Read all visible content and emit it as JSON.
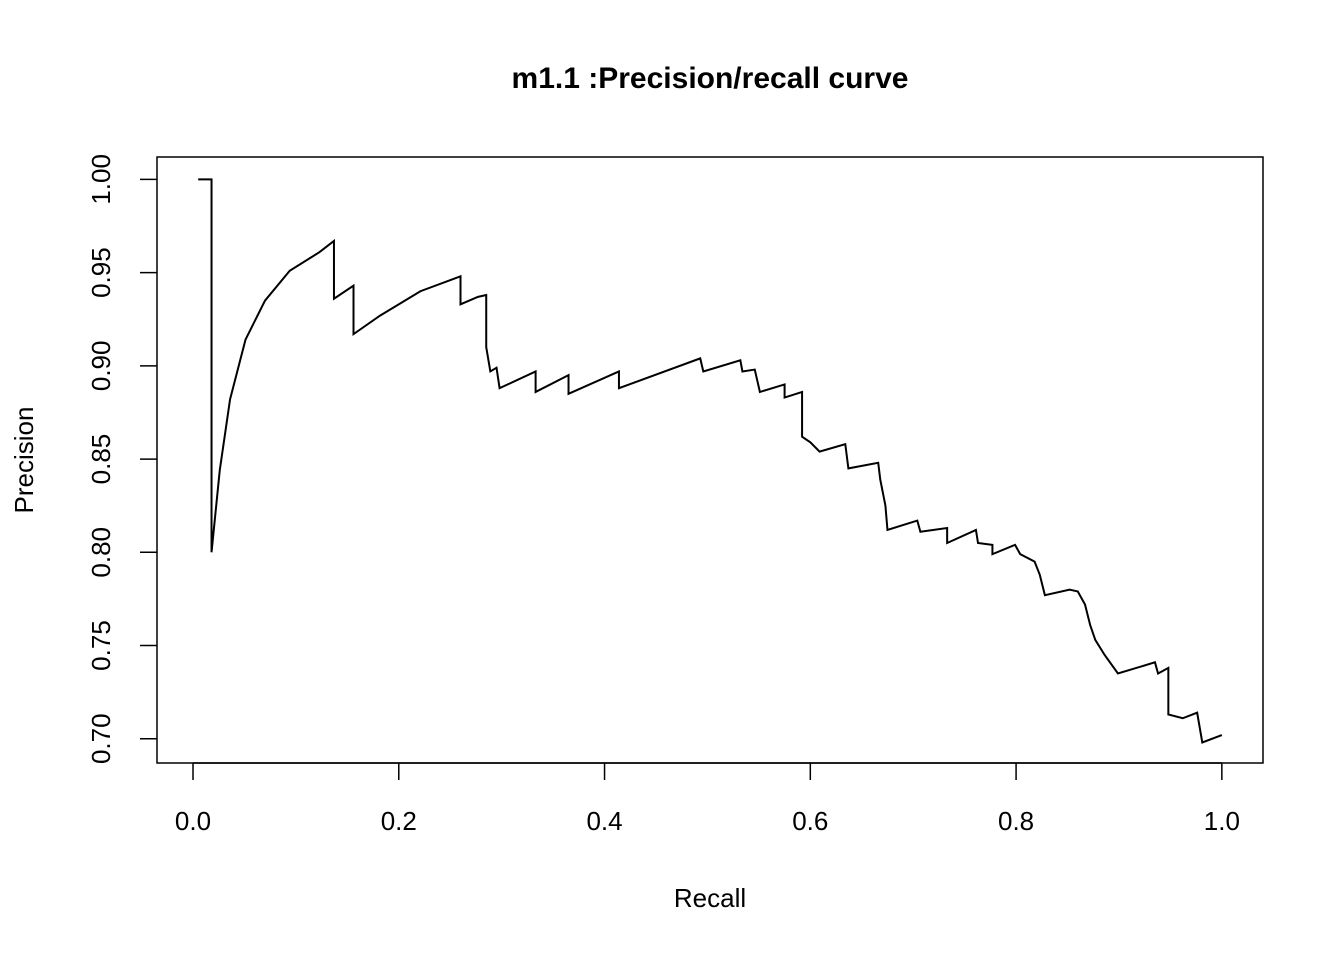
{
  "chart_data": {
    "type": "line",
    "title": "m1.1 :Precision/recall curve",
    "x_label": "Recall",
    "y_label": "Precision",
    "color": "#000000",
    "xlim": [
      -0.035,
      1.04
    ],
    "ylim": [
      0.687,
      1.012
    ],
    "xticks": [
      {
        "value": 0,
        "label": "0.0"
      },
      0.2,
      0.4,
      0.6,
      0.8,
      {
        "value": 1,
        "label": "1.0"
      }
    ],
    "yticks": [
      {
        "value": 0.7,
        "label": "0.70"
      },
      0.75,
      {
        "value": 0.8,
        "label": "0.80"
      },
      0.85,
      {
        "value": 0.9,
        "label": "0.90"
      },
      0.95,
      {
        "value": 1,
        "label": "1.00"
      }
    ],
    "x": [
      0.005,
      0.018,
      0.018,
      0.026,
      0.036,
      0.051,
      0.07,
      0.094,
      0.123,
      0.137,
      0.137,
      0.156,
      0.156,
      0.182,
      0.221,
      0.26,
      0.26,
      0.277,
      0.285,
      0.285,
      0.289,
      0.295,
      0.298,
      0.333,
      0.333,
      0.365,
      0.365,
      0.414,
      0.414,
      0.493,
      0.496,
      0.532,
      0.534,
      0.546,
      0.551,
      0.575,
      0.575,
      0.592,
      0.592,
      0.6,
      0.609,
      0.634,
      0.637,
      0.666,
      0.668,
      0.673,
      0.675,
      0.704,
      0.707,
      0.733,
      0.733,
      0.761,
      0.763,
      0.777,
      0.777,
      0.799,
      0.804,
      0.818,
      0.823,
      0.828,
      0.852,
      0.86,
      0.867,
      0.872,
      0.877,
      0.886,
      0.899,
      0.935,
      0.938,
      0.948,
      0.948,
      0.962,
      0.976,
      0.981,
      1.0
    ],
    "values": [
      1.0,
      1.0,
      0.8,
      0.844,
      0.882,
      0.914,
      0.935,
      0.951,
      0.961,
      0.967,
      0.936,
      0.943,
      0.917,
      0.927,
      0.94,
      0.948,
      0.933,
      0.937,
      0.938,
      0.91,
      0.897,
      0.899,
      0.888,
      0.897,
      0.886,
      0.895,
      0.885,
      0.897,
      0.888,
      0.904,
      0.897,
      0.903,
      0.897,
      0.898,
      0.886,
      0.89,
      0.883,
      0.886,
      0.862,
      0.859,
      0.854,
      0.858,
      0.845,
      0.848,
      0.839,
      0.825,
      0.812,
      0.817,
      0.811,
      0.813,
      0.805,
      0.812,
      0.805,
      0.804,
      0.799,
      0.804,
      0.799,
      0.795,
      0.788,
      0.777,
      0.78,
      0.779,
      0.772,
      0.761,
      0.753,
      0.745,
      0.735,
      0.741,
      0.735,
      0.738,
      0.713,
      0.711,
      0.714,
      0.698,
      0.702
    ]
  }
}
